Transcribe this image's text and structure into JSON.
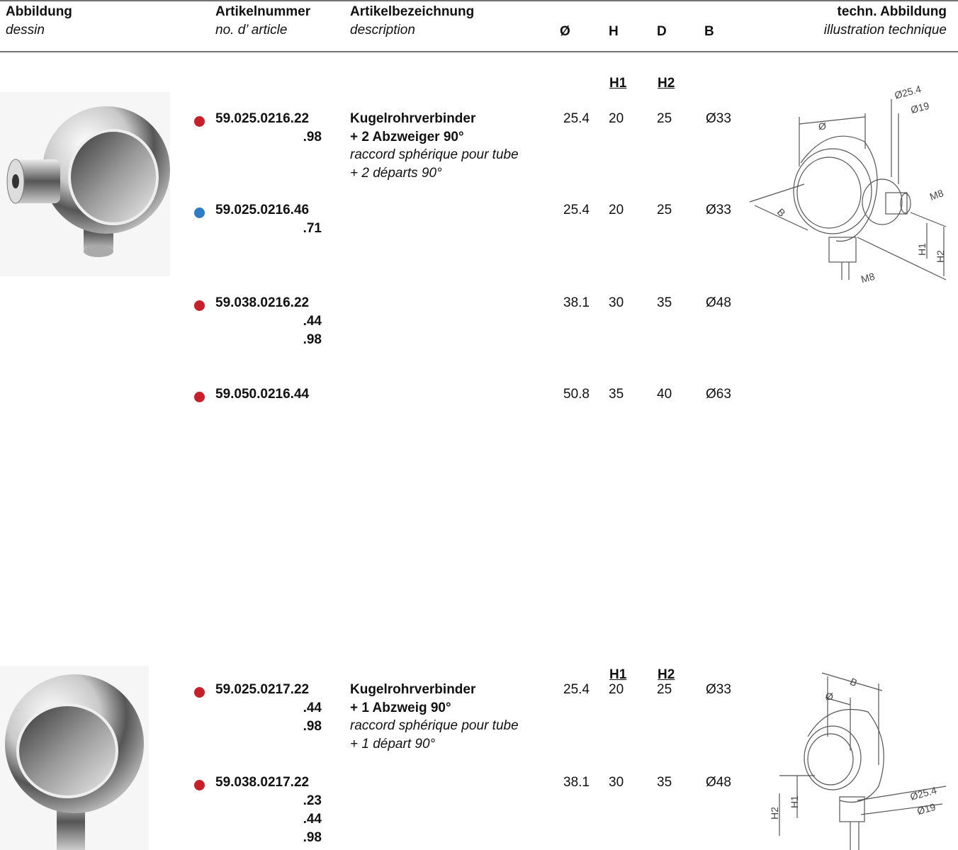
{
  "header": {
    "columns": [
      {
        "title": "Abbildung",
        "subtitle": "dessin"
      },
      {
        "title": "Artikelnummer",
        "subtitle": "no. d’ article"
      },
      {
        "title": "Artikelbezeichnung",
        "subtitle": "description"
      },
      {
        "title": "Ø"
      },
      {
        "title": "H"
      },
      {
        "title": "D"
      },
      {
        "title": "B"
      },
      {
        "title": "techn. Abbildung",
        "subtitle": "illustration technique"
      }
    ]
  },
  "products": [
    {
      "subheaders": [
        "H1",
        "H2"
      ],
      "description": {
        "title": [
          "Kugelrohrverbinder",
          "+ 2 Abzweiger 90°"
        ],
        "subtitle": [
          "raccord sphérique pour tube",
          "+ 2 départs 90°"
        ]
      },
      "rows": [
        {
          "dot": "#c8202a",
          "article": "59.025.0216.22",
          "variants": [
            ".98"
          ],
          "diameter": 25.4,
          "h": 20,
          "d": 25,
          "b": "Ø33"
        },
        {
          "dot": "#2f7bc4",
          "article": "59.025.0216.46",
          "variants": [
            ".71"
          ],
          "diameter": 25.4,
          "h": 20,
          "d": 25,
          "b": "Ø33"
        },
        {
          "dot": "#c8202a",
          "article": "59.038.0216.22",
          "variants": [
            ".44",
            ".98"
          ],
          "diameter": 38.1,
          "h": 30,
          "d": 35,
          "b": "Ø48"
        },
        {
          "dot": "#c8202a",
          "article": "59.050.0216.44",
          "variants": [],
          "diameter": 50.8,
          "h": 35,
          "d": 40,
          "b": "Ø63"
        }
      ],
      "drawing_labels": [
        "Ø25.4",
        "Ø19",
        "Ø",
        "B",
        "M8",
        "H1",
        "H2",
        "M8"
      ]
    },
    {
      "subheaders": [
        "H1",
        "H2"
      ],
      "description": {
        "title": [
          "Kugelrohrverbinder",
          "+ 1 Abzweig 90°"
        ],
        "subtitle": [
          "raccord sphérique pour tube",
          "+ 1 départ 90°"
        ]
      },
      "rows": [
        {
          "dot": "#c8202a",
          "article": "59.025.0217.22",
          "variants": [
            ".44",
            ".98"
          ],
          "diameter": 25.4,
          "h": 20,
          "d": 25,
          "b": "Ø33"
        },
        {
          "dot": "#c8202a",
          "article": "59.038.0217.22",
          "variants": [
            ".23",
            ".44",
            ".98"
          ],
          "diameter": 38.1,
          "h": 30,
          "d": 35,
          "b": "Ø48"
        }
      ],
      "drawing_labels": [
        "B",
        "Ø",
        "Ø25.4",
        "Ø19",
        "H2",
        "H1"
      ]
    }
  ]
}
